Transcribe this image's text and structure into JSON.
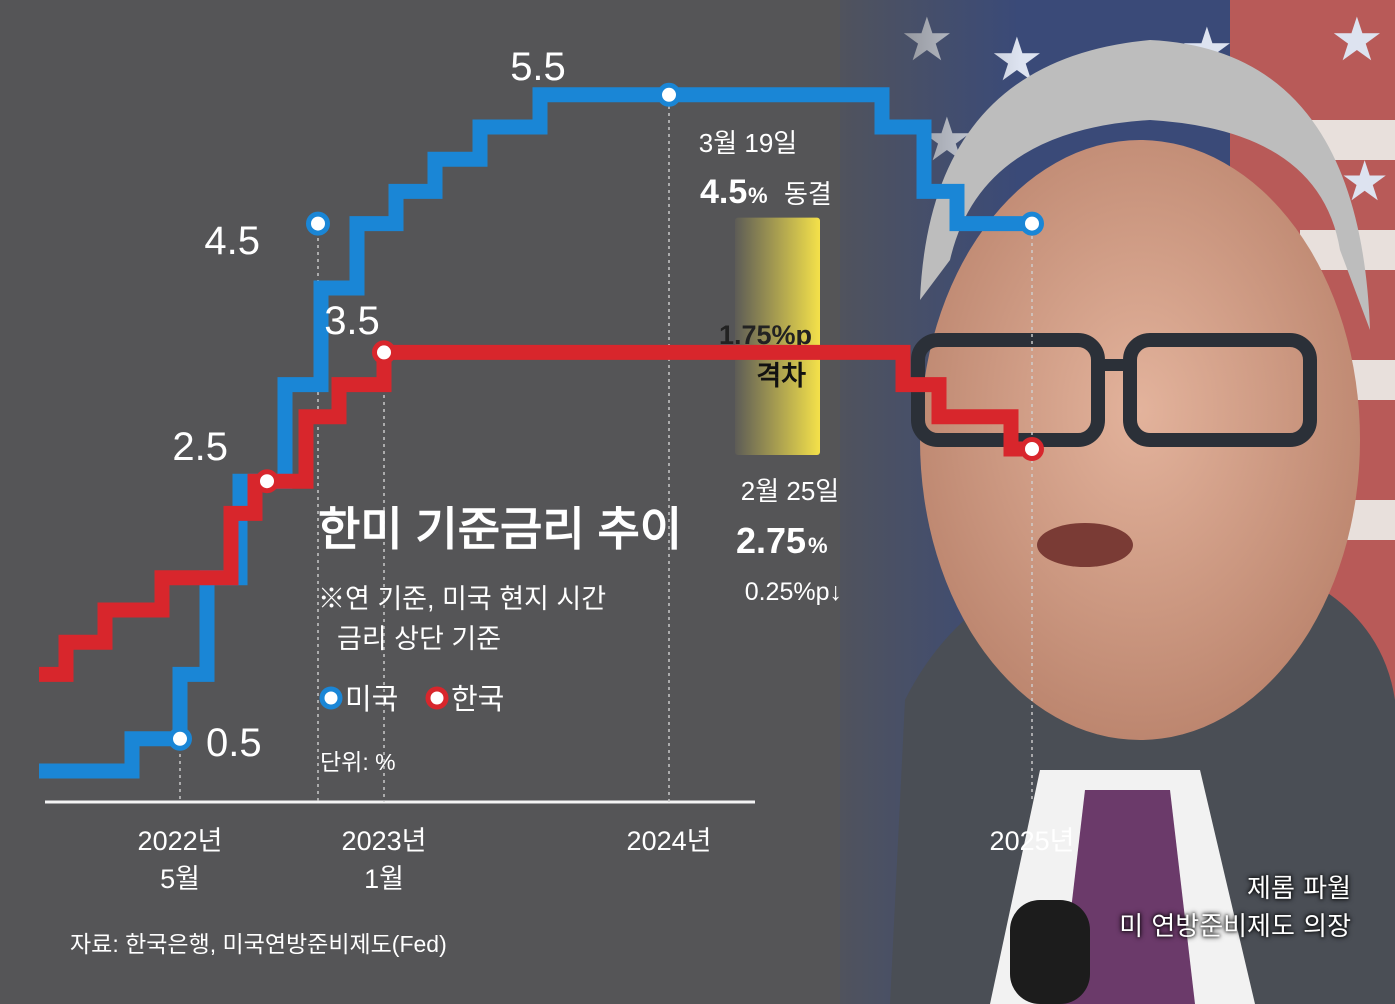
{
  "chart_data": {
    "type": "line",
    "title": "한미 기준금리 추이",
    "notes": [
      "※연 기준, 미국 현지 시간",
      "금리 상단 기준"
    ],
    "unit_label": "단위: %",
    "source": "자료: 한국은행, 미국연방준비제도(Fed)",
    "x_ticks": [
      {
        "line1": "2022년",
        "line2": "5월"
      },
      {
        "line1": "2023년",
        "line2": "1월"
      },
      {
        "line1": "2024년",
        "line2": ""
      },
      {
        "line1": "2025년",
        "line2": ""
      }
    ],
    "series": [
      {
        "name": "미국",
        "color": "#1a86d6",
        "steps": [
          [
            2021.9,
            0.25
          ],
          [
            2022.21,
            0.5
          ],
          [
            2022.37,
            1.0
          ],
          [
            2022.46,
            1.75
          ],
          [
            2022.57,
            2.5
          ],
          [
            2022.72,
            3.25
          ],
          [
            2022.84,
            4.0
          ],
          [
            2022.96,
            4.5
          ],
          [
            2023.09,
            4.75
          ],
          [
            2023.22,
            5.0
          ],
          [
            2023.37,
            5.25
          ],
          [
            2023.57,
            5.5
          ],
          [
            2024.71,
            5.25
          ],
          [
            2024.85,
            4.75
          ],
          [
            2024.96,
            4.5
          ],
          [
            2025.21,
            4.5
          ]
        ]
      },
      {
        "name": "한국",
        "color": "#d8262c",
        "steps": [
          [
            2021.9,
            1.0
          ],
          [
            2021.99,
            1.25
          ],
          [
            2022.12,
            1.5
          ],
          [
            2022.31,
            1.75
          ],
          [
            2022.54,
            2.25
          ],
          [
            2022.62,
            2.5
          ],
          [
            2022.79,
            3.0
          ],
          [
            2022.9,
            3.25
          ],
          [
            2023.05,
            3.5
          ],
          [
            2024.78,
            3.25
          ],
          [
            2024.9,
            3.0
          ],
          [
            2025.14,
            2.75
          ],
          [
            2025.21,
            2.75
          ]
        ]
      }
    ],
    "points": [
      {
        "series": "미국",
        "x": 2022.37,
        "y": 0.5,
        "label": "0.5"
      },
      {
        "series": "미국",
        "x": 2022.83,
        "y": 4.5,
        "label": "4.5"
      },
      {
        "series": "미국",
        "x": 2024.0,
        "y": 5.5,
        "label": "5.5"
      },
      {
        "series": "미국",
        "x": 2025.21,
        "y": 4.5,
        "label": ""
      },
      {
        "series": "한국",
        "x": 2022.66,
        "y": 2.5,
        "label": "2.5"
      },
      {
        "series": "한국",
        "x": 2023.05,
        "y": 3.5,
        "label": "3.5"
      },
      {
        "series": "한국",
        "x": 2025.21,
        "y": 2.75,
        "label": ""
      }
    ],
    "annotations": {
      "us": {
        "date": "3월 19일",
        "value": "4.5",
        "pct": "%",
        "status": "동결"
      },
      "kr": {
        "date": "2월 25일",
        "value": "2.75",
        "pct": "%",
        "change": "0.25%p↓"
      },
      "gap": {
        "value": "1.75%p",
        "label": "격차"
      }
    }
  },
  "photo_caption": [
    "제롬 파월",
    "미 연방준비제도 의장"
  ],
  "colors": {
    "background": "#555557",
    "us": "#1a86d6",
    "kr": "#d8262c",
    "gap": "#f4e14a"
  }
}
